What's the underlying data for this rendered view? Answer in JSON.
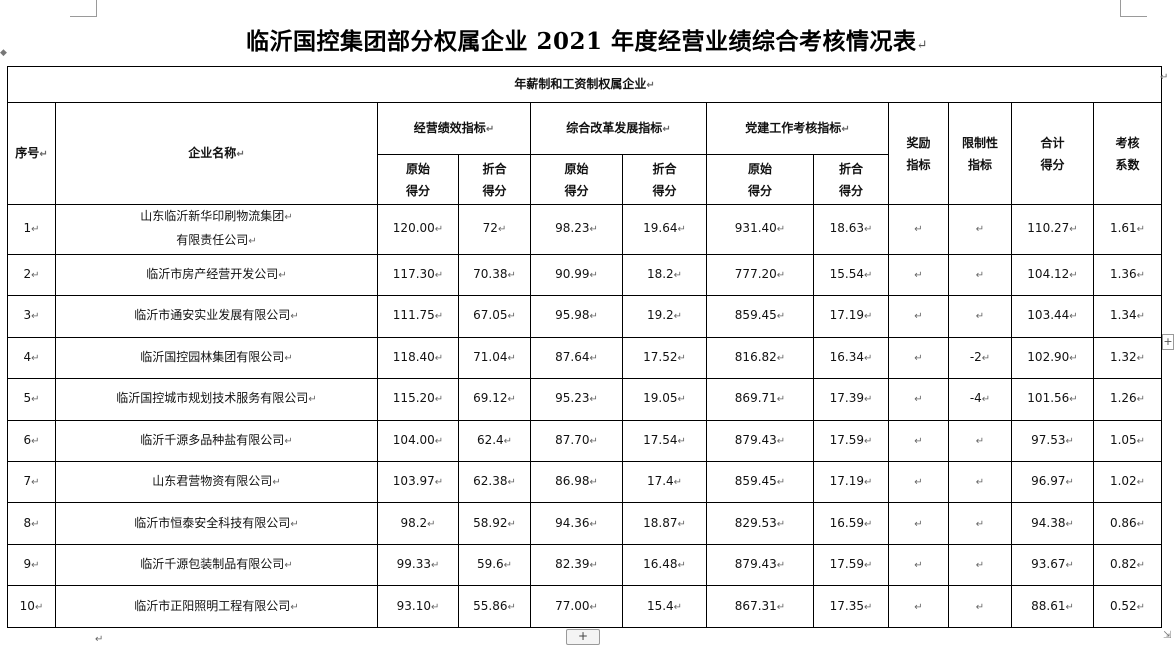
{
  "title": "临沂国控集团部分权属企业 2021 年度经营业绩综合考核情况表",
  "para_mark": "↵",
  "section_header": "年薪制和工资制权属企业",
  "headers": {
    "seq": "序号",
    "company": "企业名称",
    "group_business": "经营绩效指标",
    "group_reform": "综合改革发展指标",
    "group_party": "党建工作考核指标",
    "raw_1": "原始",
    "raw_2": "得分",
    "conv_1": "折合",
    "conv_2": "得分",
    "reward_1": "奖励",
    "reward_2": "指标",
    "limit_1": "限制性",
    "limit_2": "指标",
    "total_1": "合计",
    "total_2": "得分",
    "coef_1": "考核",
    "coef_2": "系数"
  },
  "rows": [
    {
      "seq": "1",
      "name_l1": "山东临沂新华印刷物流集团",
      "name_l2": "有限责任公司",
      "biz_raw": "120.00",
      "biz_conv": "72",
      "ref_raw": "98.23",
      "ref_conv": "19.64",
      "party_raw": "931.40",
      "party_conv": "18.63",
      "reward": "",
      "limit": "",
      "total": "110.27",
      "coef": "1.61"
    },
    {
      "seq": "2",
      "name_l1": "临沂市房产经营开发公司",
      "name_l2": "",
      "biz_raw": "117.30",
      "biz_conv": "70.38",
      "ref_raw": "90.99",
      "ref_conv": "18.2",
      "party_raw": "777.20",
      "party_conv": "15.54",
      "reward": "",
      "limit": "",
      "total": "104.12",
      "coef": "1.36"
    },
    {
      "seq": "3",
      "name_l1": "临沂市通安实业发展有限公司",
      "name_l2": "",
      "biz_raw": "111.75",
      "biz_conv": "67.05",
      "ref_raw": "95.98",
      "ref_conv": "19.2",
      "party_raw": "859.45",
      "party_conv": "17.19",
      "reward": "",
      "limit": "",
      "total": "103.44",
      "coef": "1.34"
    },
    {
      "seq": "4",
      "name_l1": "临沂国控园林集团有限公司",
      "name_l2": "",
      "biz_raw": "118.40",
      "biz_conv": "71.04",
      "ref_raw": "87.64",
      "ref_conv": "17.52",
      "party_raw": "816.82",
      "party_conv": "16.34",
      "reward": "",
      "limit": "-2",
      "total": "102.90",
      "coef": "1.32"
    },
    {
      "seq": "5",
      "name_l1": "临沂国控城市规划技术服务有限公司",
      "name_l2": "",
      "biz_raw": "115.20",
      "biz_conv": "69.12",
      "ref_raw": "95.23",
      "ref_conv": "19.05",
      "party_raw": "869.71",
      "party_conv": "17.39",
      "reward": "",
      "limit": "-4",
      "total": "101.56",
      "coef": "1.26"
    },
    {
      "seq": "6",
      "name_l1": "临沂千源多品种盐有限公司",
      "name_l2": "",
      "biz_raw": "104.00",
      "biz_conv": "62.4",
      "ref_raw": "87.70",
      "ref_conv": "17.54",
      "party_raw": "879.43",
      "party_conv": "17.59",
      "reward": "",
      "limit": "",
      "total": "97.53",
      "coef": "1.05"
    },
    {
      "seq": "7",
      "name_l1": "山东君营物资有限公司",
      "name_l2": "",
      "biz_raw": "103.97",
      "biz_conv": "62.38",
      "ref_raw": "86.98",
      "ref_conv": "17.4",
      "party_raw": "859.45",
      "party_conv": "17.19",
      "reward": "",
      "limit": "",
      "total": "96.97",
      "coef": "1.02"
    },
    {
      "seq": "8",
      "name_l1": "临沂市恒泰安全科技有限公司",
      "name_l2": "",
      "biz_raw": "98.2",
      "biz_conv": "58.92",
      "ref_raw": "94.36",
      "ref_conv": "18.87",
      "party_raw": "829.53",
      "party_conv": "16.59",
      "reward": "",
      "limit": "",
      "total": "94.38",
      "coef": "0.86"
    },
    {
      "seq": "9",
      "name_l1": "临沂千源包装制品有限公司",
      "name_l2": "",
      "biz_raw": "99.33",
      "biz_conv": "59.6",
      "ref_raw": "82.39",
      "ref_conv": "16.48",
      "party_raw": "879.43",
      "party_conv": "17.59",
      "reward": "",
      "limit": "",
      "total": "93.67",
      "coef": "0.82"
    },
    {
      "seq": "10",
      "name_l1": "临沂市正阳照明工程有限公司",
      "name_l2": "",
      "biz_raw": "93.10",
      "biz_conv": "55.86",
      "ref_raw": "77.00",
      "ref_conv": "15.4",
      "party_raw": "867.31",
      "party_conv": "17.35",
      "reward": "",
      "limit": "",
      "total": "88.61",
      "coef": "0.52"
    }
  ],
  "icons": {
    "add_row": "plus-icon",
    "resize": "plus-icon",
    "add_row_glyph": "+",
    "resize_glyph": "+"
  }
}
